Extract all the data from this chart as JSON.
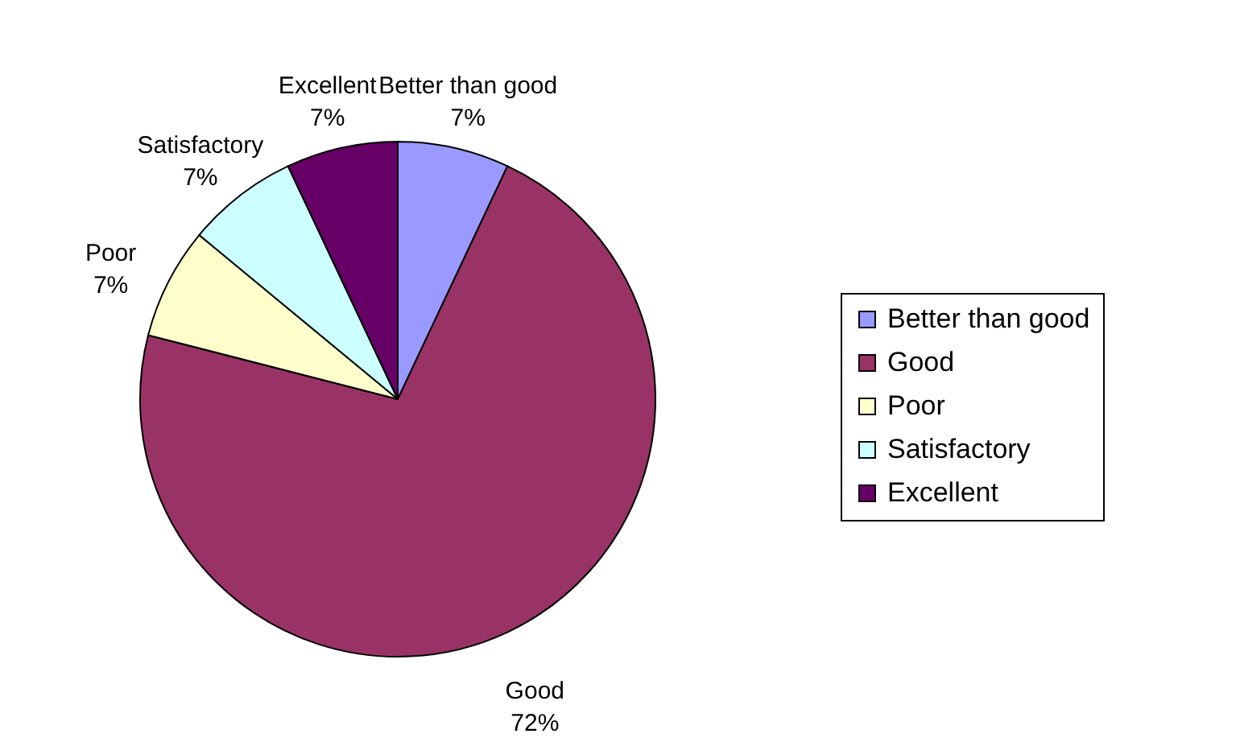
{
  "chart_data": {
    "type": "pie",
    "categories": [
      "Better than good",
      "Good",
      "Poor",
      "Satisfactory",
      "Excellent"
    ],
    "values": [
      7,
      72,
      7,
      7,
      7
    ],
    "value_labels": [
      "7%",
      "72%",
      "7%",
      "7%",
      "7%"
    ],
    "colors": [
      "#9999ff",
      "#993366",
      "#ffffcc",
      "#ccffff",
      "#660066"
    ],
    "legend": "right"
  }
}
